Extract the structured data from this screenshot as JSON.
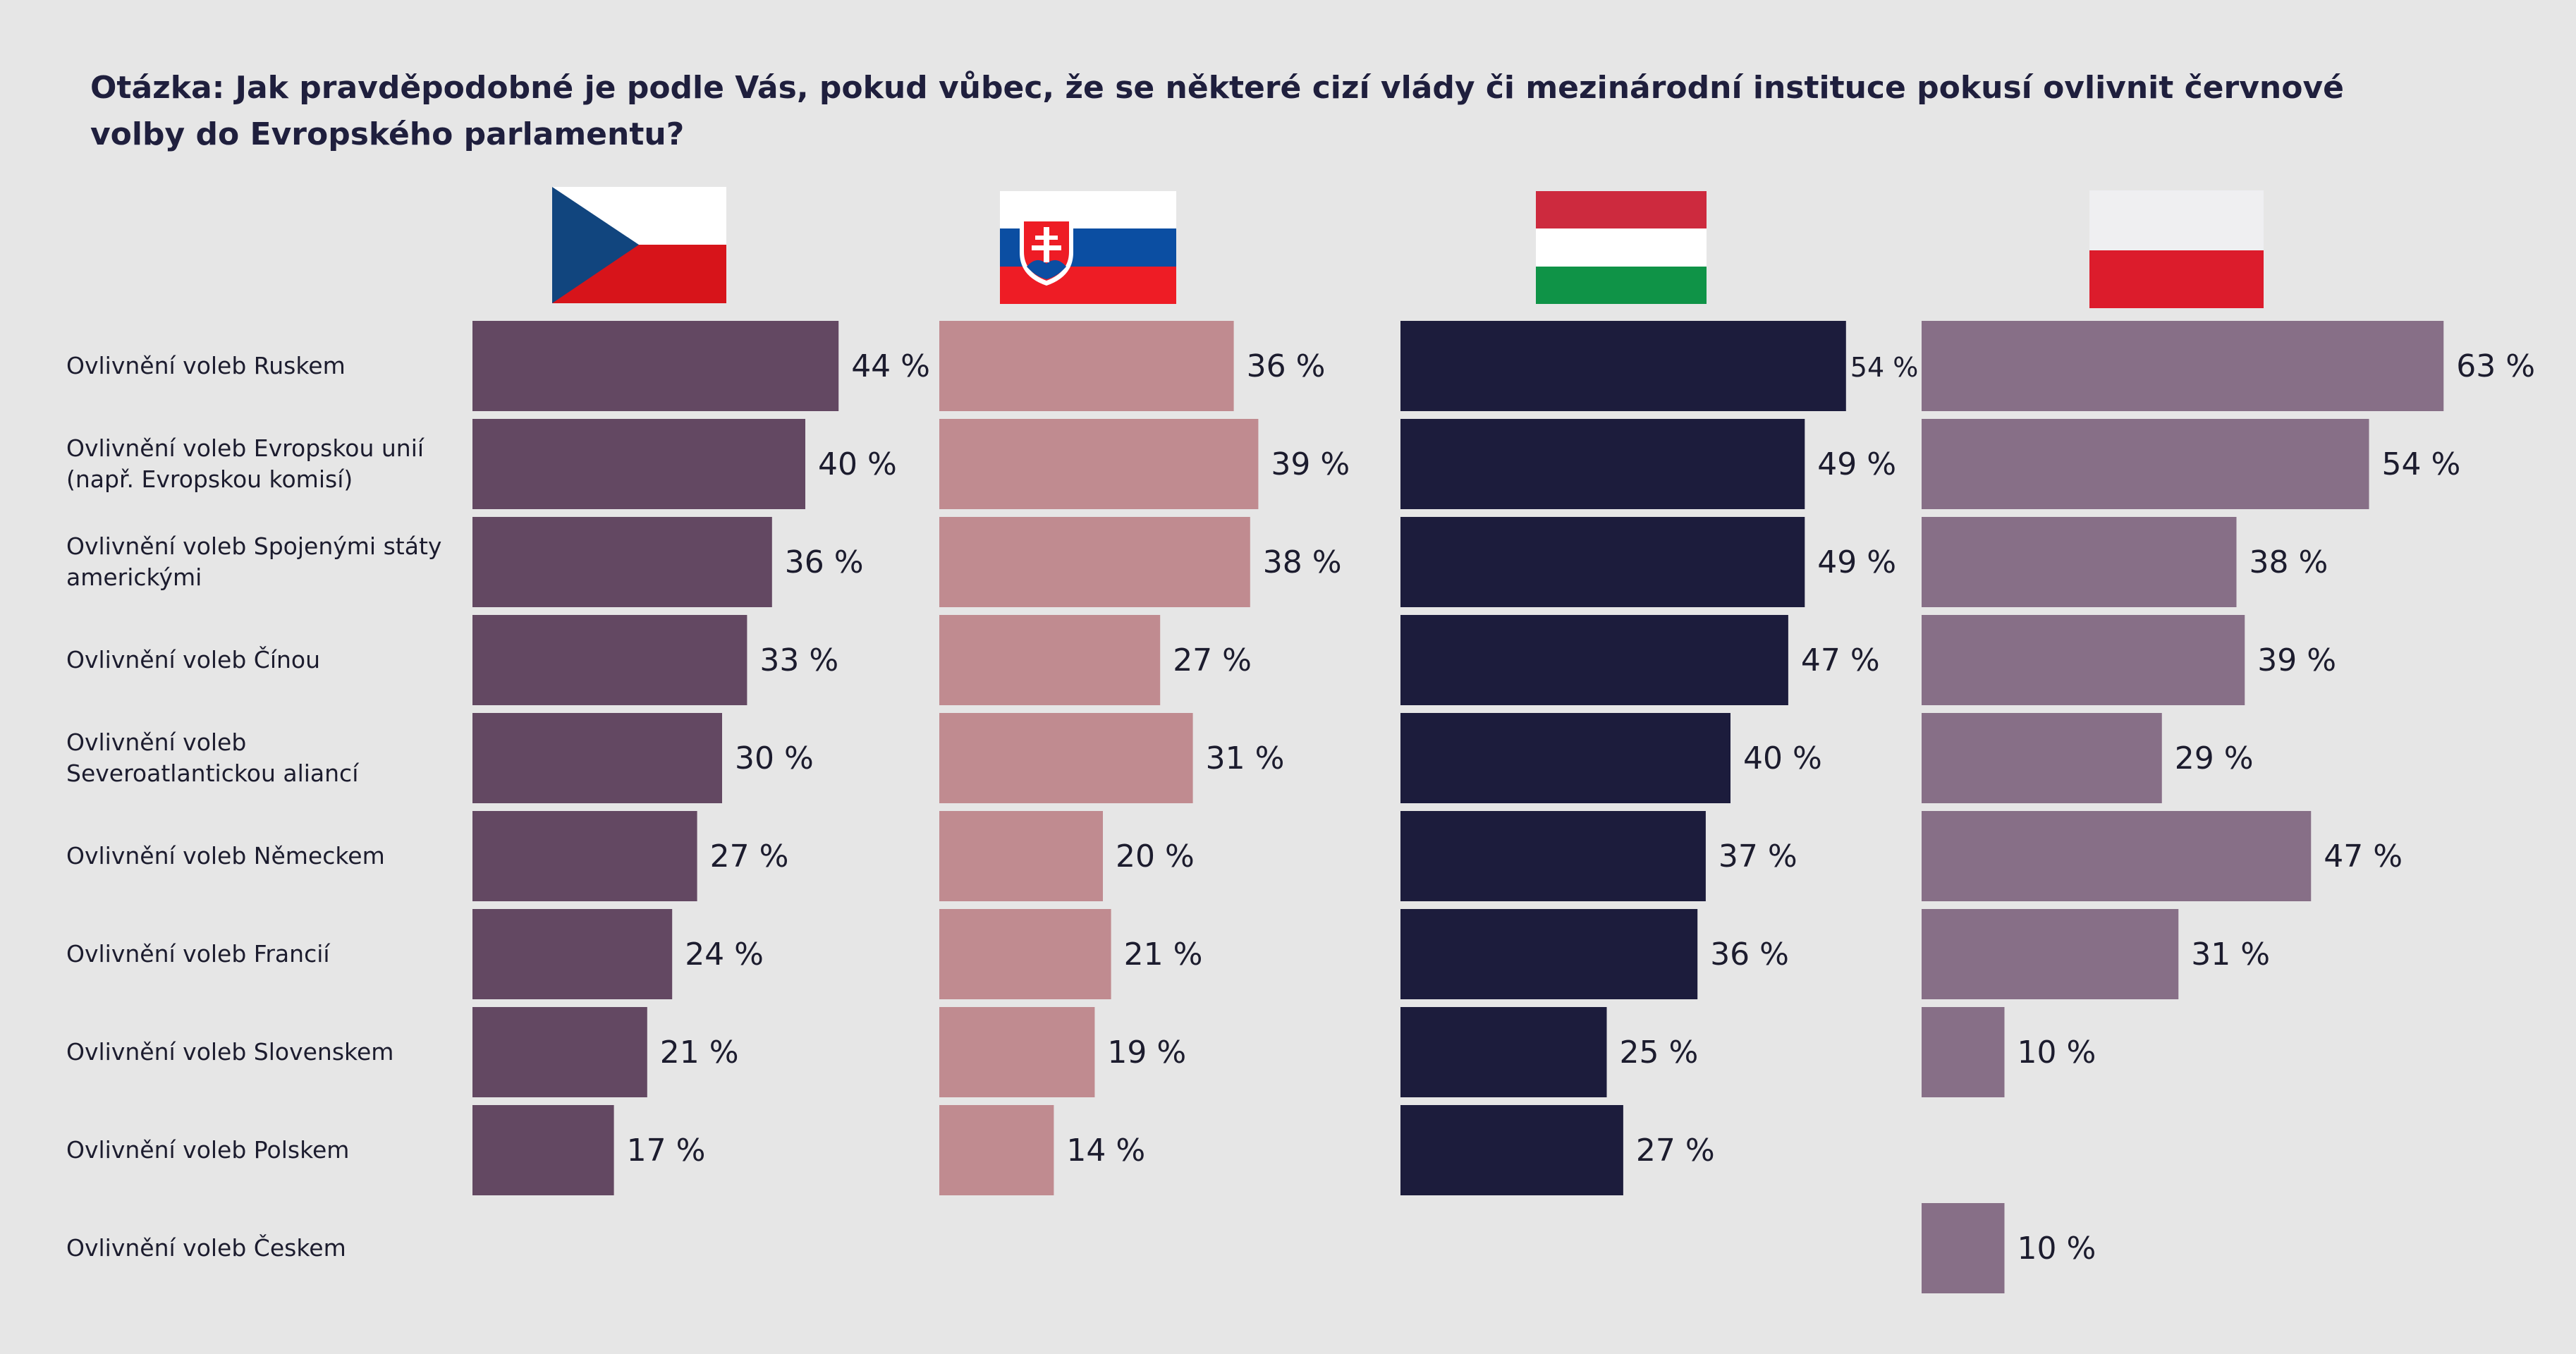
{
  "title": "Otázka: Jak pravděpodobné je podle Vás, pokud vůbec, že se některé cizí vlády či mezinárodní instituce pokusí ovlivnit červnové volby do Evropského parlamentu?",
  "colors": {
    "background": "#e6e6e6",
    "cz": "#634862",
    "sk": "#c08b90",
    "hu": "#1c1c3c",
    "pl": "#876f87"
  },
  "flags": [
    "czech-flag-icon",
    "slovak-flag-icon",
    "hungarian-flag-icon",
    "polish-flag-icon"
  ],
  "chart_data": {
    "type": "bar",
    "orientation": "horizontal",
    "categories": [
      [
        "Ovlivnění voleb Ruskem"
      ],
      [
        "Ovlivnění voleb Evropskou unií",
        "(např. Evropskou komisí)"
      ],
      [
        "Ovlivnění voleb Spojenými státy",
        "americkými"
      ],
      [
        "Ovlivnění voleb Čínou"
      ],
      [
        "Ovlivnění voleb",
        "Severoatlantickou aliancí"
      ],
      [
        "Ovlivnění voleb Německem"
      ],
      [
        "Ovlivnění voleb Francií"
      ],
      [
        "Ovlivnění voleb Slovenskem"
      ],
      [
        "Ovlivnění voleb Polskem"
      ],
      [
        "Ovlivnění voleb Českem"
      ]
    ],
    "unit": "%",
    "series": [
      {
        "values": [
          44,
          40,
          36,
          33,
          30,
          27,
          24,
          21,
          17,
          null
        ]
      },
      {
        "values": [
          36,
          39,
          38,
          27,
          31,
          20,
          21,
          19,
          14,
          null
        ]
      },
      {
        "values": [
          54,
          49,
          49,
          47,
          40,
          37,
          36,
          25,
          27,
          null
        ]
      },
      {
        "values": [
          63,
          54,
          38,
          39,
          29,
          47,
          31,
          10,
          null,
          10
        ]
      }
    ]
  }
}
